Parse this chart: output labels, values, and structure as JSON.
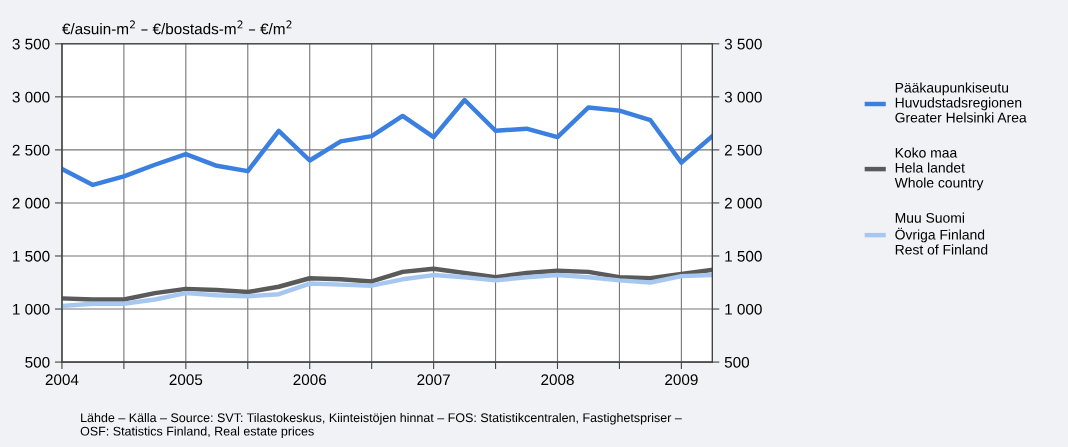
{
  "chart_data": {
    "type": "line",
    "ylabel": "€/asuin-m$^{2}$ – €/bostads-m$^{2}$ – €/m$^{2}$",
    "x": [
      2004,
      2004.25,
      2004.5,
      2004.75,
      2005,
      2005.25,
      2005.5,
      2005.75,
      2006,
      2006.25,
      2006.5,
      2006.75,
      2007,
      2007.25,
      2007.5,
      2007.75,
      2008,
      2008.25,
      2008.5,
      2008.75,
      2009,
      2009.25
    ],
    "series": [
      {
        "name": "Pääkaupunkiseutu\nHuvudstadsregionen\nGreater Helsinki Area",
        "color": "#3b7fe0",
        "values": [
          2320,
          2170,
          2250,
          2360,
          2460,
          2350,
          2300,
          2680,
          2400,
          2580,
          2630,
          2820,
          2620,
          2970,
          2680,
          2700,
          2620,
          2900,
          2870,
          2780,
          2380,
          2630
        ]
      },
      {
        "name": "Koko maa\nHela landet\nWhole country",
        "color": "#5a5a5a",
        "values": [
          1100,
          1090,
          1090,
          1150,
          1190,
          1180,
          1160,
          1210,
          1290,
          1280,
          1260,
          1350,
          1380,
          1340,
          1300,
          1340,
          1360,
          1350,
          1300,
          1290,
          1330,
          1370
        ]
      },
      {
        "name": "Muu Suomi\nÖvriga Finland\nRest of Finland",
        "color": "#a6c8f0",
        "values": [
          1030,
          1050,
          1050,
          1090,
          1150,
          1130,
          1120,
          1140,
          1240,
          1230,
          1220,
          1280,
          1320,
          1300,
          1270,
          1300,
          1320,
          1300,
          1270,
          1250,
          1310,
          1320
        ]
      }
    ],
    "xlim": [
      2004,
      2009.25
    ],
    "xticks": [
      2004,
      {
        "value": 2004.5,
        "label": null
      },
      2005,
      {
        "value": 2005.5,
        "label": null
      },
      2006,
      {
        "value": 2006.5,
        "label": null
      },
      2007,
      {
        "value": 2007.5,
        "label": null
      },
      2008,
      {
        "value": 2008.5,
        "label": null
      },
      2009
    ],
    "ylim": [
      500,
      3500
    ],
    "yticks": [
      500,
      {
        "value": 1000,
        "label": "1 000"
      },
      {
        "value": 1500,
        "label": "1 500"
      },
      {
        "value": 2000,
        "label": "2 000"
      },
      {
        "value": 2500,
        "label": "2 500"
      },
      {
        "value": 3000,
        "label": "3 000"
      },
      {
        "value": 3500,
        "label": "3 500"
      }
    ],
    "y2lim": [
      500,
      3500
    ],
    "y2ticks": [
      500,
      {
        "value": 1000,
        "label": "1 000"
      },
      {
        "value": 1500,
        "label": "1 500"
      },
      {
        "value": 2000,
        "label": "2 000"
      },
      {
        "value": 2500,
        "label": "2 500"
      },
      {
        "value": 3000,
        "label": "3 000"
      },
      {
        "value": 3500,
        "label": "3 500"
      }
    ],
    "grid": true,
    "legend": "right",
    "line_style": "solid",
    "marker": "none",
    "annotations": [
      "Lähde – Källa – Source: SVT: Tilastokeskus, Kiinteistöjen hinnat – FOS: Statistikcentralen, Fastighetspriser –\nOSF: Statistics Finland, Real estate prices"
    ]
  }
}
